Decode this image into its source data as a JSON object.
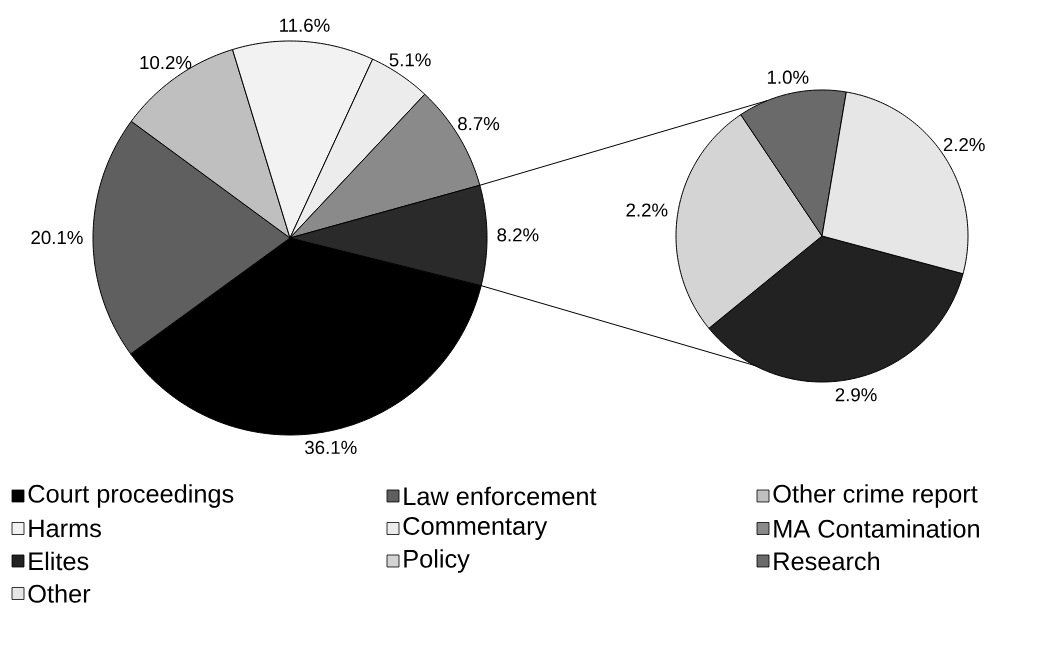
{
  "chart_data": [
    {
      "type": "pie",
      "categories": [
        "Court proceedings",
        "Law enforcement",
        "Other crime report",
        "Harms",
        "Commentary",
        "MA Contamination",
        null
      ],
      "values": [
        36.1,
        20.1,
        10.2,
        11.6,
        5.1,
        8.7,
        8.2
      ],
      "colors": [
        "#000000",
        "#5f5f5f",
        "#bfbfbf",
        "#f2f2f2",
        "#ececec",
        "#8a8a8a",
        "#2a2a2a"
      ],
      "value_labels": [
        "36.1%",
        "20.1%",
        "10.2%",
        "11.6%",
        "5.1%",
        "8.7%",
        "8.2%"
      ],
      "legend": "bottom"
    },
    {
      "type": "pie",
      "categories": [
        "Elites",
        "Policy",
        "Research",
        "Other"
      ],
      "values": [
        2.9,
        2.2,
        1.0,
        2.2
      ],
      "colors": [
        "#222222",
        "#d4d4d4",
        "#6a6a6a",
        "#e6e6e6"
      ],
      "value_labels": [
        "2.9%",
        "2.2%",
        "1.0%",
        "2.2%"
      ],
      "legend": "bottom"
    }
  ]
}
